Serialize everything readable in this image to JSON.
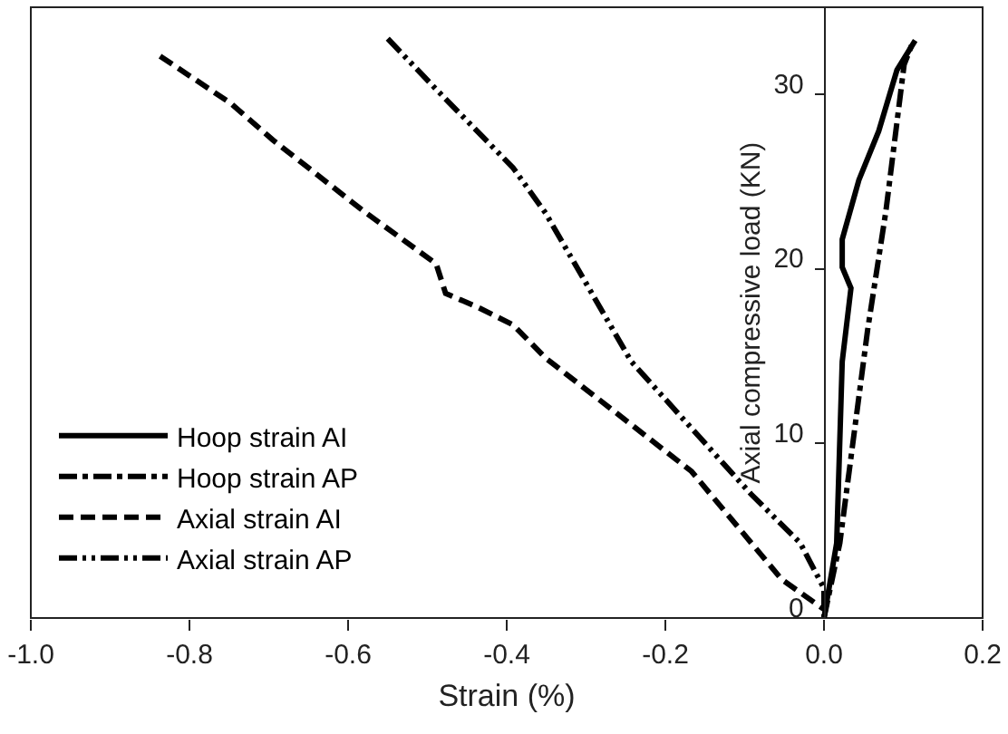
{
  "chart_data": {
    "type": "line",
    "xlabel": "Strain (%)",
    "ylabel": "Axial compressive load (KN)",
    "xlim": [
      -1.0,
      0.2
    ],
    "xticks": [
      {
        "value": -1.0,
        "label": "-1.0"
      },
      -0.8,
      -0.6,
      -0.4,
      -0.2,
      {
        "value": 0.0,
        "label": "0.0"
      },
      0.2
    ],
    "ylim": [
      0,
      35
    ],
    "yticks": [
      0,
      10,
      20,
      30
    ],
    "legend": "bottom left",
    "marker": "none",
    "series": [
      {
        "name": "Hoop strain AI",
        "color": "#000000",
        "line_style": "solid",
        "x": [
          0.0,
          0.016,
          0.023,
          0.034,
          0.023,
          0.023,
          0.044,
          0.069,
          0.092,
          0.115
        ],
        "values": [
          0.0,
          4.3,
          14.7,
          18.9,
          20.1,
          21.7,
          25.1,
          27.9,
          31.4,
          33.1
        ]
      },
      {
        "name": "Hoop strain AP",
        "color": "#000000",
        "line_style": "dashdot",
        "x": [
          0.0,
          0.02,
          0.028,
          0.055,
          0.078,
          0.101,
          0.112
        ],
        "values": [
          0.0,
          4.3,
          7.1,
          16.5,
          23.3,
          31.7,
          33.0
        ]
      },
      {
        "name": "Axial strain AI",
        "color": "#000000",
        "line_style": "dashed",
        "x": [
          -0.837,
          -0.748,
          -0.695,
          -0.58,
          -0.489,
          -0.477,
          -0.436,
          -0.392,
          -0.351,
          -0.167,
          -0.053,
          0.0
        ],
        "values": [
          32.2,
          29.5,
          27.4,
          23.3,
          20.3,
          18.6,
          17.8,
          16.8,
          14.9,
          8.4,
          2.2,
          0.5
        ]
      },
      {
        "name": "Axial strain AP",
        "color": "#000000",
        "line_style": "dashdotdot",
        "x": [
          -0.55,
          -0.489,
          -0.392,
          -0.351,
          -0.243,
          -0.092,
          -0.03,
          0.0,
          0.0
        ],
        "values": [
          33.2,
          30.3,
          25.8,
          23.2,
          14.7,
          7.1,
          4.3,
          1.7,
          0.0
        ]
      }
    ]
  }
}
